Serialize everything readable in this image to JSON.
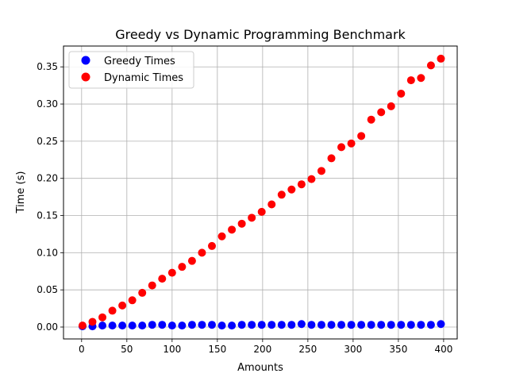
{
  "chart_data": {
    "type": "scatter",
    "title": "Greedy vs Dynamic Programming Benchmark",
    "xlabel": "Amounts",
    "ylabel": "Time (s)",
    "xlim": [
      -20,
      415
    ],
    "ylim": [
      -0.016,
      0.378
    ],
    "xticks": [
      "0",
      "50",
      "100",
      "150",
      "200",
      "250",
      "300",
      "350",
      "400"
    ],
    "yticks": [
      "0.00",
      "0.05",
      "0.10",
      "0.15",
      "0.20",
      "0.25",
      "0.30",
      "0.35"
    ],
    "grid": true,
    "legend_position": "upper-left",
    "colors": {
      "greedy": "#0000ff",
      "dynamic": "#ff0000"
    },
    "x": [
      1,
      12,
      23,
      34,
      45,
      56,
      67,
      78,
      89,
      100,
      111,
      122,
      133,
      144,
      155,
      166,
      177,
      188,
      199,
      210,
      221,
      232,
      243,
      254,
      265,
      276,
      287,
      298,
      309,
      320,
      331,
      342,
      353,
      364,
      375,
      386,
      397
    ],
    "series": [
      {
        "name": "Greedy Times",
        "values": [
          0.001,
          0.001,
          0.002,
          0.002,
          0.002,
          0.002,
          0.002,
          0.003,
          0.003,
          0.002,
          0.002,
          0.003,
          0.003,
          0.003,
          0.002,
          0.002,
          0.003,
          0.003,
          0.003,
          0.003,
          0.003,
          0.003,
          0.004,
          0.003,
          0.003,
          0.003,
          0.003,
          0.003,
          0.003,
          0.003,
          0.003,
          0.003,
          0.003,
          0.003,
          0.003,
          0.003,
          0.004
        ]
      },
      {
        "name": "Dynamic Times",
        "values": [
          0.002,
          0.007,
          0.013,
          0.022,
          0.029,
          0.036,
          0.046,
          0.056,
          0.065,
          0.073,
          0.081,
          0.089,
          0.1,
          0.109,
          0.122,
          0.131,
          0.139,
          0.147,
          0.155,
          0.165,
          0.178,
          0.185,
          0.192,
          0.199,
          0.21,
          0.227,
          0.242,
          0.247,
          0.257,
          0.279,
          0.289,
          0.297,
          0.314,
          0.332,
          0.335,
          0.352,
          0.361
        ]
      }
    ]
  }
}
